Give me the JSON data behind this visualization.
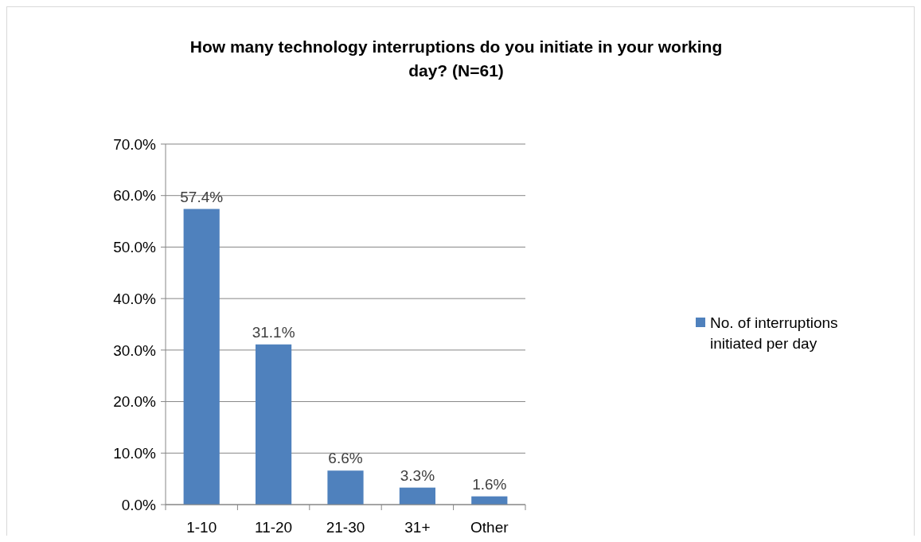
{
  "chart_data": {
    "type": "bar",
    "title": "How many technology interruptions do you initiate in your working day? (N=61)",
    "categories": [
      "1-10",
      "11-20",
      "21-30",
      "31+",
      "Other"
    ],
    "series": [
      {
        "name": "No. of interruptions initiated per day",
        "color": "#4f81bd",
        "values": [
          57.4,
          31.1,
          6.6,
          3.3,
          1.6
        ],
        "value_labels": [
          "57.4%",
          "31.1%",
          "6.6%",
          "3.3%",
          "1.6%"
        ]
      }
    ],
    "ylim": [
      0,
      70
    ],
    "yticks": [
      {
        "value": 0,
        "label": "0.0%"
      },
      {
        "value": 10,
        "label": "10.0%"
      },
      {
        "value": 20,
        "label": "20.0%"
      },
      {
        "value": 30,
        "label": "30.0%"
      },
      {
        "value": 40,
        "label": "40.0%"
      },
      {
        "value": 50,
        "label": "50.0%"
      },
      {
        "value": 60,
        "label": "60.0%"
      },
      {
        "value": 70,
        "label": "70.0%"
      }
    ],
    "grid": "y",
    "legend": "right"
  }
}
